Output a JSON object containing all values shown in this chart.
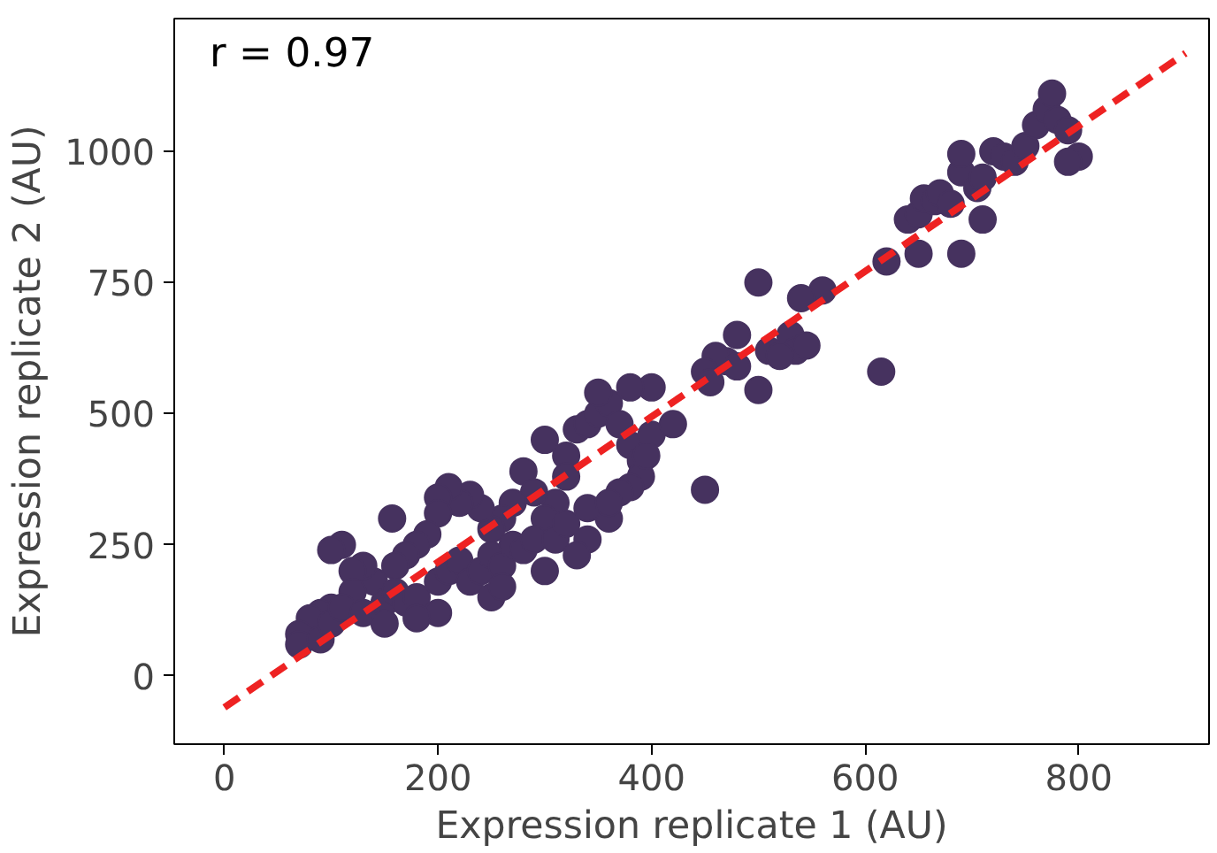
{
  "chart_data": {
    "type": "scatter",
    "xlabel": "Expression replicate 1 (AU)",
    "ylabel": "Expression replicate 2 (AU)",
    "annotations": [
      "r = 0.97"
    ],
    "xlim": [
      -47,
      922
    ],
    "ylim": [
      -130,
      1253
    ],
    "xticks": [
      0,
      200,
      400,
      600,
      800
    ],
    "yticks": [
      0,
      250,
      500,
      750,
      1000
    ],
    "grid": false,
    "series": [
      {
        "color": "#46325f",
        "marker": "circle",
        "x": [
          620,
          640,
          650,
          655,
          665,
          670,
          680,
          690,
          705,
          710,
          690,
          720,
          730,
          740,
          750,
          760,
          770,
          775,
          780,
          790,
          800,
          790,
          650,
          690,
          710,
          615,
          560,
          540,
          530,
          535,
          545,
          500,
          500,
          510,
          520,
          480,
          470,
          460,
          450,
          455,
          450,
          480,
          300,
          320,
          330,
          340,
          350,
          360,
          370,
          380,
          390,
          400,
          400,
          420,
          390,
          380,
          370,
          360,
          340,
          310,
          300,
          320,
          280,
          290,
          270,
          260,
          250,
          240,
          230,
          220,
          210,
          200,
          200,
          190,
          180,
          170,
          160,
          140,
          130,
          120,
          110,
          100,
          120,
          100,
          90,
          80,
          70,
          70,
          90,
          100,
          110,
          130,
          150,
          160,
          170,
          180,
          200,
          210,
          220,
          230,
          240,
          250,
          260,
          270,
          280,
          290,
          310,
          320,
          340,
          360,
          250,
          260,
          200,
          180,
          150,
          300,
          330,
          157,
          350,
          380,
          395
        ],
        "values": [
          790,
          870,
          880,
          910,
          905,
          920,
          900,
          960,
          930,
          950,
          995,
          1000,
          990,
          980,
          1010,
          1050,
          1080,
          1110,
          1060,
          1040,
          990,
          980,
          805,
          805,
          870,
          580,
          735,
          720,
          650,
          620,
          630,
          545,
          750,
          620,
          610,
          650,
          600,
          610,
          580,
          560,
          355,
          590,
          450,
          420,
          470,
          480,
          500,
          520,
          480,
          440,
          410,
          460,
          550,
          480,
          380,
          360,
          350,
          300,
          260,
          330,
          300,
          380,
          390,
          350,
          330,
          300,
          280,
          320,
          345,
          330,
          360,
          340,
          310,
          270,
          250,
          230,
          210,
          180,
          210,
          200,
          250,
          240,
          160,
          130,
          120,
          110,
          80,
          60,
          70,
          100,
          130,
          120,
          140,
          160,
          140,
          150,
          180,
          200,
          220,
          180,
          200,
          230,
          210,
          250,
          240,
          260,
          260,
          290,
          320,
          330,
          150,
          170,
          120,
          110,
          100,
          200,
          230,
          300,
          540,
          550,
          420
        ]
      },
      {
        "type": "line",
        "color": "#ee2222",
        "line_style": "dashed",
        "marker": "none",
        "x": [
          0,
          900
        ],
        "values": [
          -60,
          1187
        ]
      }
    ]
  }
}
